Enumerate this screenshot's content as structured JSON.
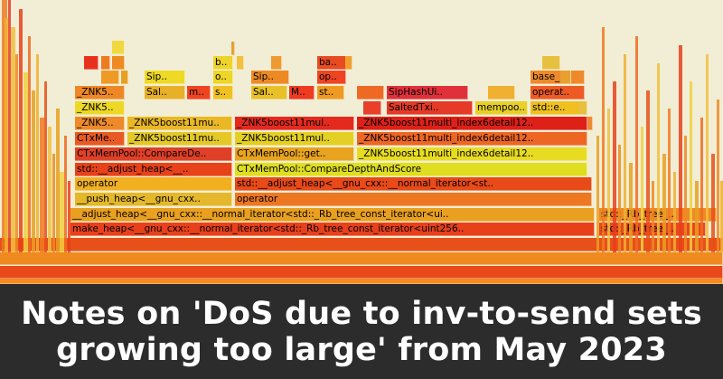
{
  "banner": {
    "title_line1": "Notes on 'DoS due to inv-to-send sets",
    "title_line2": "growing too large' from May 2023"
  },
  "flamegraph": {
    "frames": [
      {
        "label": "]",
        "color": "#e8501a"
      },
      {
        "label": "make_heap<__gnu_cxx::__normal_iterator<std::_Rb_tree_const_iterator<uint256..",
        "color": "#e8401a"
      },
      {
        "label": "std::_Rb_tree_..",
        "color": "#e8481c"
      },
      {
        "label": "__adjust_heap<__gnu_cxx::__normal_iterator<std::_Rb_tree_const_iterator<ui..",
        "color": "#e9a020"
      },
      {
        "label": "std::_Rb_tree_..",
        "color": "#ee8a26"
      },
      {
        "label": "__push_heap<__gnu_cxx..",
        "color": "#e4b82a"
      },
      {
        "label": "operator",
        "color": "#ee7722"
      },
      {
        "label": "operator",
        "color": "#f0b020"
      },
      {
        "label": "std::__adjust_heap<__gnu_cxx::__normal_iterator<st..",
        "color": "#e84a18"
      },
      {
        "label": "std::__adjust_heap<__..",
        "color": "#e8421a"
      },
      {
        "label": "CTxMemPool::CompareDepthAndScore",
        "color": "#dfde20"
      },
      {
        "label": "CTxMemPool::CompareDe..",
        "color": "#e04028"
      },
      {
        "label": "CTxMemPool::get..",
        "color": "#e8a41e"
      },
      {
        "label": "_ZNK5boost11multi_index6detail12..",
        "color": "#e8dc22"
      },
      {
        "label": "CTxMe..",
        "color": "#e85a24"
      },
      {
        "label": "_ZNK5boost11mu..",
        "color": "#e4c828"
      },
      {
        "label": "_ZNK5boost11mul..",
        "color": "#e4d024"
      },
      {
        "label": "_ZNK5boost11multi_index6detail12..",
        "color": "#ee6624"
      },
      {
        "label": "_ZNK5..",
        "color": "#ee8a2a"
      },
      {
        "label": "_ZNK5boost11mu..",
        "color": "#e9b824"
      },
      {
        "label": "_ZNK5boost11mul..",
        "color": "#e42a1e"
      },
      {
        "label": "_ZNK5boost11multi_index6detail12..",
        "color": "#dd2018"
      },
      {
        "label": "_ZNK5..",
        "color": "#eed826"
      },
      {
        "label": "SaltedTxi..",
        "color": "#e53a28"
      },
      {
        "label": "mempoo..",
        "color": "#e8d028"
      },
      {
        "label": "std::e..",
        "color": "#f0c020"
      },
      {
        "label": "_ZNK5..",
        "color": "#ee8826"
      },
      {
        "label": "Sal..",
        "color": "#e8b028"
      },
      {
        "label": "m..",
        "color": "#ee4422"
      },
      {
        "label": "s..",
        "color": "#f0c022"
      },
      {
        "label": "Sal..",
        "color": "#e8c028"
      },
      {
        "label": "M..",
        "color": "#ee3a20"
      },
      {
        "label": "st..",
        "color": "#ee9a22"
      },
      {
        "label": "SipHashUi..",
        "color": "#e0303a"
      },
      {
        "label": "operat..",
        "color": "#ee5a24"
      },
      {
        "label": "Sip..",
        "color": "#eeda24"
      },
      {
        "label": "o..",
        "color": "#eed626"
      },
      {
        "label": "Sip..",
        "color": "#ee8a24"
      },
      {
        "label": "op..",
        "color": "#ee4422"
      },
      {
        "label": "base_b..",
        "color": "#ee8a2a"
      },
      {
        "label": "b..",
        "color": "#eed42a"
      },
      {
        "label": "ba..",
        "color": "#e84a22"
      }
    ]
  }
}
